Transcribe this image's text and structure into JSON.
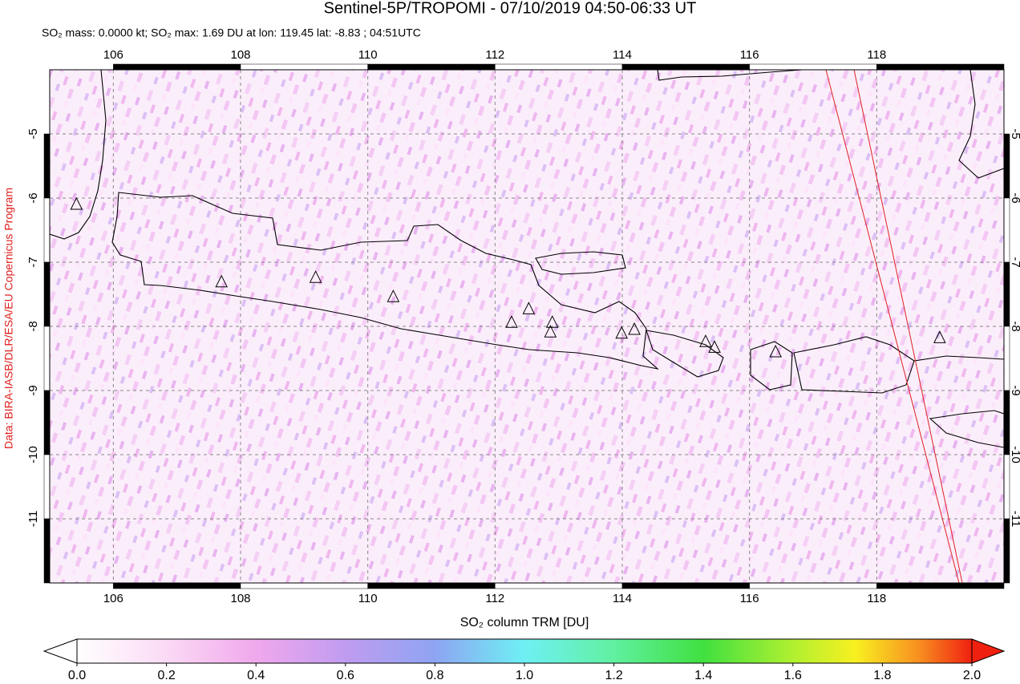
{
  "chart_data": {
    "type": "map",
    "title": "Sentinel-5P/TROPOMI - 07/10/2019 04:50-06:33 UT",
    "subtitle": "SO₂ mass: 0.0000 kt; SO₂ max: 1.69 DU at lon: 119.45 lat: -8.83 ; 04:51UTC",
    "credit": "Data: BIRA-IASB/DLR/ESA/EU Copernicus Program",
    "xlim": [
      105,
      120
    ],
    "ylim": [
      -12,
      -4
    ],
    "xticks": [
      106,
      108,
      110,
      112,
      114,
      116,
      118
    ],
    "yticks": [
      -5,
      -6,
      -7,
      -8,
      -9,
      -10,
      -11
    ],
    "grid": true,
    "volcanoes": {
      "lon": [
        105.42,
        107.7,
        109.18,
        110.4,
        112.26,
        112.53,
        112.9,
        112.87,
        113.99,
        114.19,
        115.31,
        115.45,
        116.41,
        118.99
      ],
      "lat": [
        -6.1,
        -7.31,
        -7.24,
        -7.54,
        -7.94,
        -7.73,
        -7.94,
        -8.09,
        -8.11,
        -8.05,
        -8.24,
        -8.33,
        -8.4,
        -8.18
      ]
    },
    "colorbar": {
      "label": "SO₂ column TRM [DU]",
      "lim": [
        0,
        2
      ],
      "ticks": [
        {
          "value": 0,
          "label": "0.0"
        },
        {
          "value": 0.2,
          "label": "0.2"
        },
        {
          "value": 0.4,
          "label": "0.4"
        },
        {
          "value": 0.6,
          "label": "0.6"
        },
        {
          "value": 0.8,
          "label": "0.8"
        },
        {
          "value": 1,
          "label": "1.0"
        },
        {
          "value": 1.2,
          "label": "1.2"
        },
        {
          "value": 1.4,
          "label": "1.4"
        },
        {
          "value": 1.6,
          "label": "1.6"
        },
        {
          "value": 1.8,
          "label": "1.8"
        },
        {
          "value": 2,
          "label": "2.0"
        }
      ]
    }
  }
}
